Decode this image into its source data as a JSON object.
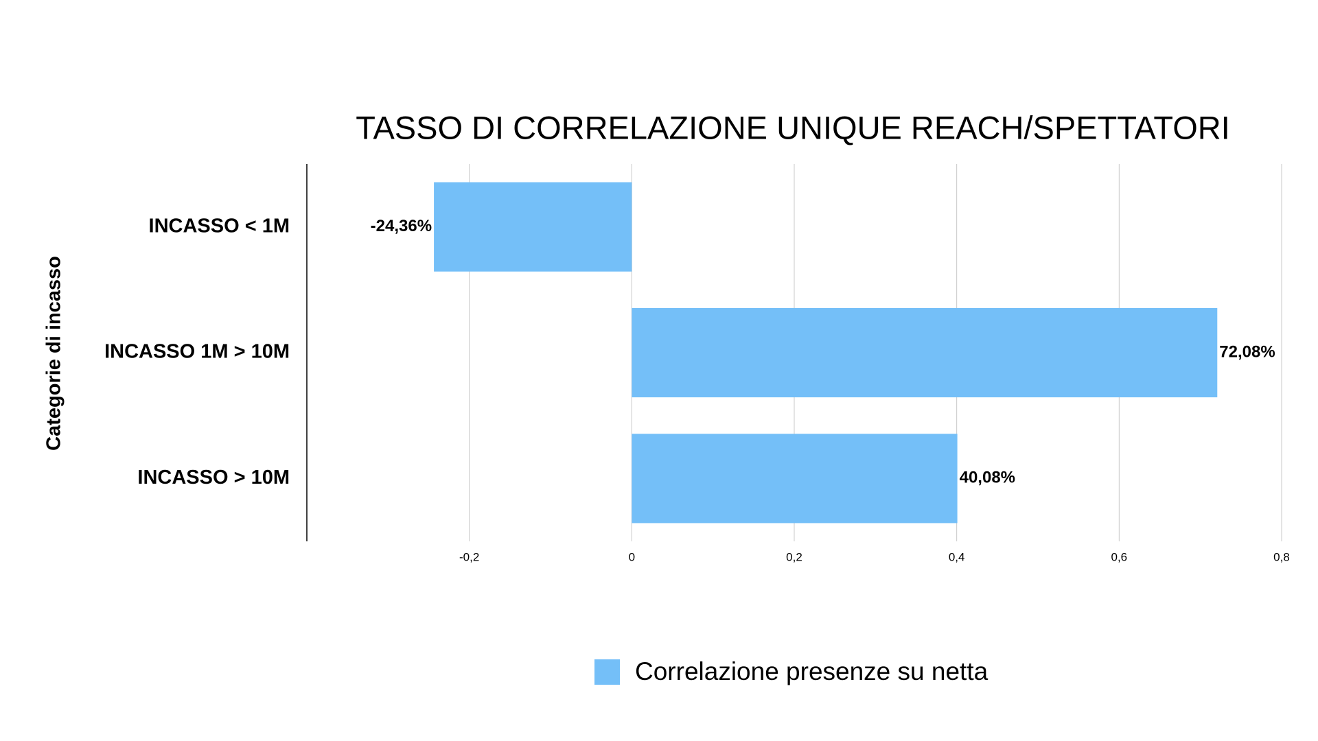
{
  "chart_data": {
    "type": "hbar",
    "title": "TASSO DI CORRELAZIONE UNIQUE REACH/SPETTATORI",
    "y_label": "Categorie di incasso",
    "categories": [
      "INCASSO < 1M",
      "INCASSO 1M > 10M",
      "INCASSO > 10M"
    ],
    "series": [
      {
        "name": "Correlazione presenze su netta",
        "color": "#74bff8",
        "values": [
          -0.2436,
          0.7208,
          0.4008
        ],
        "value_labels": [
          "-24,36%",
          "72,08%",
          "40,08%"
        ]
      }
    ],
    "xlim": [
      -0.4,
      0.8
    ],
    "xticks": [
      {
        "value": -0.2,
        "label": "-0,2"
      },
      0,
      {
        "value": 0.2,
        "label": "0,2"
      },
      {
        "value": 0.4,
        "label": "0,4"
      },
      {
        "value": 0.6,
        "label": "0,6"
      },
      {
        "value": 0.8,
        "label": "0,8"
      }
    ],
    "grid": true,
    "legend": "bottom"
  }
}
